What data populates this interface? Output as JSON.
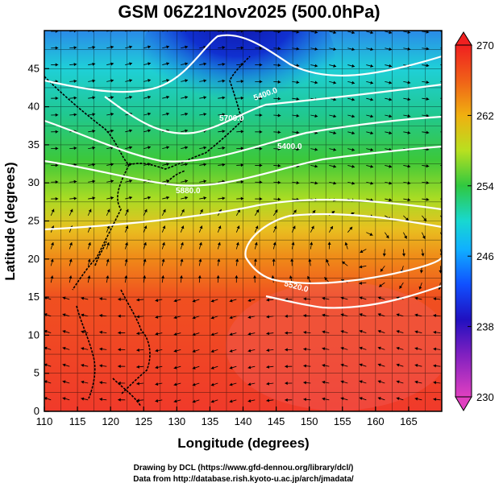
{
  "title": "GSM 06Z21Nov2025 (500.0hPa)",
  "x_axis": {
    "label": "Longitude (degrees)",
    "ticks": [
      "110",
      "115",
      "120",
      "125",
      "130",
      "135",
      "140",
      "145",
      "150",
      "155",
      "160",
      "165"
    ],
    "range": [
      110,
      170
    ]
  },
  "y_axis": {
    "label": "Latitude  (degrees)",
    "ticks": [
      "0",
      "5",
      "10",
      "15",
      "20",
      "25",
      "30",
      "35",
      "40",
      "45"
    ],
    "range": [
      0,
      50
    ]
  },
  "colorbar": {
    "ticks": [
      "230",
      "238",
      "246",
      "254",
      "262",
      "270"
    ],
    "range": [
      230,
      270
    ],
    "colors": [
      "#e040c0",
      "#3010c0",
      "#1078ff",
      "#18d8e0",
      "#30c840",
      "#b8e020",
      "#f0a010",
      "#f04020"
    ]
  },
  "contour_labels": [
    "5400.0",
    "5700.0",
    "5400.0",
    "5880.0",
    "5520.0",
    "5880.0"
  ],
  "credits": {
    "line1": "Drawing by DCL (https://www.gfd-dennou.org/library/dcl/)",
    "line2": "Data from http://database.rish.kyoto-u.ac.jp/arch/jmadata/"
  }
}
